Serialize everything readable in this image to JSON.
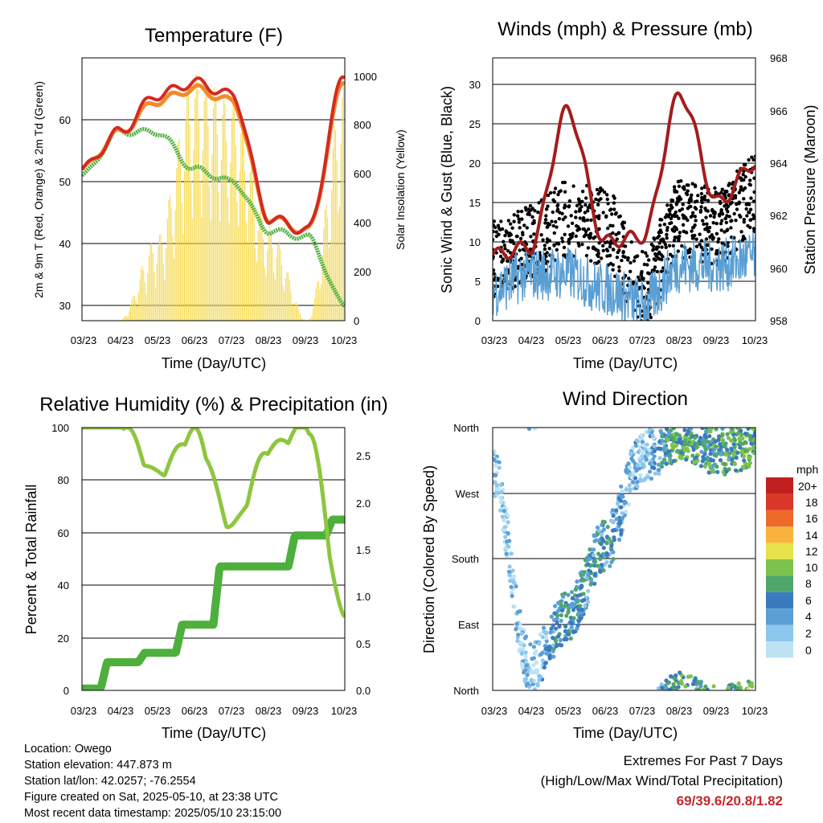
{
  "charts": {
    "x_tick_labels": [
      "03/23",
      "04/23",
      "05/23",
      "06/23",
      "07/23",
      "08/23",
      "09/23",
      "10/23"
    ],
    "x_title": "Time (Day/UTC)",
    "temperature": {
      "title": "Temperature (F)",
      "ylabel_left": "2m & 9m T (Red, Orange) & 2m Td (Green)",
      "ylabel_right": "Solar Insolation (Yellow)",
      "left_ticks": [
        "30",
        "40",
        "50",
        "60"
      ],
      "right_ticks": [
        "0",
        "200",
        "400",
        "600",
        "800",
        "1000"
      ]
    },
    "winds": {
      "title": "Winds (mph) & Pressure (mb)",
      "ylabel_left": "Sonic Wind & Gust (Blue, Black)",
      "ylabel_right": "Station Pressure (Maroon)",
      "left_ticks": [
        "0",
        "5",
        "10",
        "15",
        "20",
        "25",
        "30"
      ],
      "right_ticks": [
        "958",
        "960",
        "962",
        "964",
        "966",
        "968"
      ]
    },
    "rh": {
      "title": "Relative Humidity (%) & Precipitation (in)",
      "ylabel_left": "Percent & Total Rainfall",
      "left_ticks": [
        "0",
        "20",
        "40",
        "60",
        "80",
        "100"
      ],
      "right_ticks": [
        "0.0",
        "0.5",
        "1.0",
        "1.5",
        "2.0",
        "2.5"
      ]
    },
    "wind_direction": {
      "title": "Wind Direction",
      "ylabel_left": "Direction (Colored By Speed)",
      "dir_ticks": [
        "North",
        "East",
        "South",
        "West",
        "North"
      ],
      "legend_title": "mph",
      "legend_labels": [
        "20+",
        "18",
        "16",
        "14",
        "12",
        "10",
        "8",
        "6",
        "4",
        "2",
        "0"
      ]
    }
  },
  "info": {
    "location": "Location: Owego",
    "elevation": "Station elevation: 447.873 m",
    "latlon": "Station lat/lon: 42.0257; -76.2554",
    "created": "Figure created on Sat, 2025-05-10, at 23:38 UTC",
    "recent": "Most recent data timestamp: 2025/05/10 23:15:00"
  },
  "extremes": {
    "line1": "Extremes For Past 7 Days",
    "line2": "(High/Low/Max Wind/Total Precipitation)",
    "values": "69/39.6/20.8/1.82"
  },
  "colors": {
    "temp2m": "#d42a20",
    "temp9m": "#f28a2a",
    "dewpoint": "#4daf3c",
    "insolation": "#f5d94a",
    "gust": "#000000",
    "wind": "#5a9fd4",
    "pressure": "#a51c1c",
    "rh": "#8dc63f",
    "precip": "#4daf3c",
    "speed_scale": [
      "#bfe3f5",
      "#8ec7ee",
      "#5a9fd4",
      "#3a7bbf",
      "#4fa66a",
      "#7cc34e",
      "#e6e24a",
      "#f7b33c",
      "#ee6a2c",
      "#d93828",
      "#c0201f",
      "#9c1414"
    ]
  },
  "chart_data": [
    {
      "type": "line",
      "title": "Temperature (F)",
      "xlabel": "Time (Day/UTC)",
      "ylabel": "2m & 9m T (Red, Orange) & 2m Td (Green)",
      "y2label": "Solar Insolation (Yellow)",
      "x": [
        "03/23",
        "04/23",
        "05/23",
        "06/23",
        "07/23",
        "08/23",
        "09/23",
        "10/23"
      ],
      "ylim": [
        27.5,
        70
      ],
      "y2lim": [
        0,
        1060
      ],
      "series": [
        {
          "name": "2m T",
          "values": [
            52,
            58,
            64,
            66,
            64,
            44,
            42,
            67
          ]
        },
        {
          "name": "9m T",
          "values": [
            52,
            58,
            63,
            65,
            63,
            44,
            42,
            66
          ]
        },
        {
          "name": "2m Td",
          "values": [
            51,
            58,
            58,
            52,
            50,
            42,
            41,
            30
          ]
        },
        {
          "name": "Solar Insolation",
          "values": [
            0,
            0,
            340,
            1000,
            900,
            380,
            0,
            970
          ]
        }
      ]
    },
    {
      "type": "line",
      "title": "Winds (mph) & Pressure (mb)",
      "xlabel": "Time (Day/UTC)",
      "ylabel": "Sonic Wind & Gust (Blue, Black)",
      "y2label": "Station Pressure (Maroon)",
      "x": [
        "03/23",
        "04/23",
        "05/23",
        "06/23",
        "07/23",
        "08/23",
        "09/23",
        "10/23"
      ],
      "ylim": [
        0,
        33.5
      ],
      "y2lim": [
        958,
        968
      ],
      "series": [
        {
          "name": "Sonic Wind",
          "values": [
            4,
            6,
            6,
            4,
            2,
            7,
            7,
            8
          ]
        },
        {
          "name": "Gust",
          "values": [
            8,
            10,
            13,
            12,
            4,
            13,
            12,
            16
          ]
        },
        {
          "name": "Station Pressure",
          "values": [
            960.5,
            960.8,
            966.0,
            961.0,
            961.2,
            966.6,
            962.5,
            964.0
          ]
        }
      ]
    },
    {
      "type": "line",
      "title": "Relative Humidity (%) & Precipitation (in)",
      "xlabel": "Time (Day/UTC)",
      "ylabel": "Percent & Total Rainfall",
      "ylim": [
        0,
        100
      ],
      "y2lim": [
        0,
        2.8
      ],
      "x": [
        "03/23",
        "04/23",
        "05/23",
        "06/23",
        "07/23",
        "08/23",
        "09/23",
        "10/23"
      ],
      "series": [
        {
          "name": "Relative Humidity",
          "values": [
            100,
            100,
            80,
            96,
            60,
            90,
            98,
            25
          ]
        },
        {
          "name": "Total Precipitation",
          "values": [
            0.02,
            0.3,
            0.4,
            0.7,
            1.32,
            1.32,
            1.65,
            1.82
          ]
        }
      ]
    },
    {
      "type": "scatter",
      "title": "Wind Direction",
      "xlabel": "Time (Day/UTC)",
      "ylabel": "Direction (Colored By Speed)",
      "x": [
        "03/23",
        "04/23",
        "05/23",
        "06/23",
        "07/23",
        "08/23",
        "09/23",
        "10/23"
      ],
      "categories": [
        "North",
        "East",
        "South",
        "West",
        "North"
      ],
      "series": [
        {
          "name": "Direction (deg)",
          "values": [
            300,
            30,
            100,
            200,
            320,
            350,
            330,
            340
          ]
        },
        {
          "name": "Speed (mph)",
          "values": [
            3,
            3,
            7,
            6,
            3,
            9,
            8,
            10
          ]
        }
      ]
    }
  ]
}
